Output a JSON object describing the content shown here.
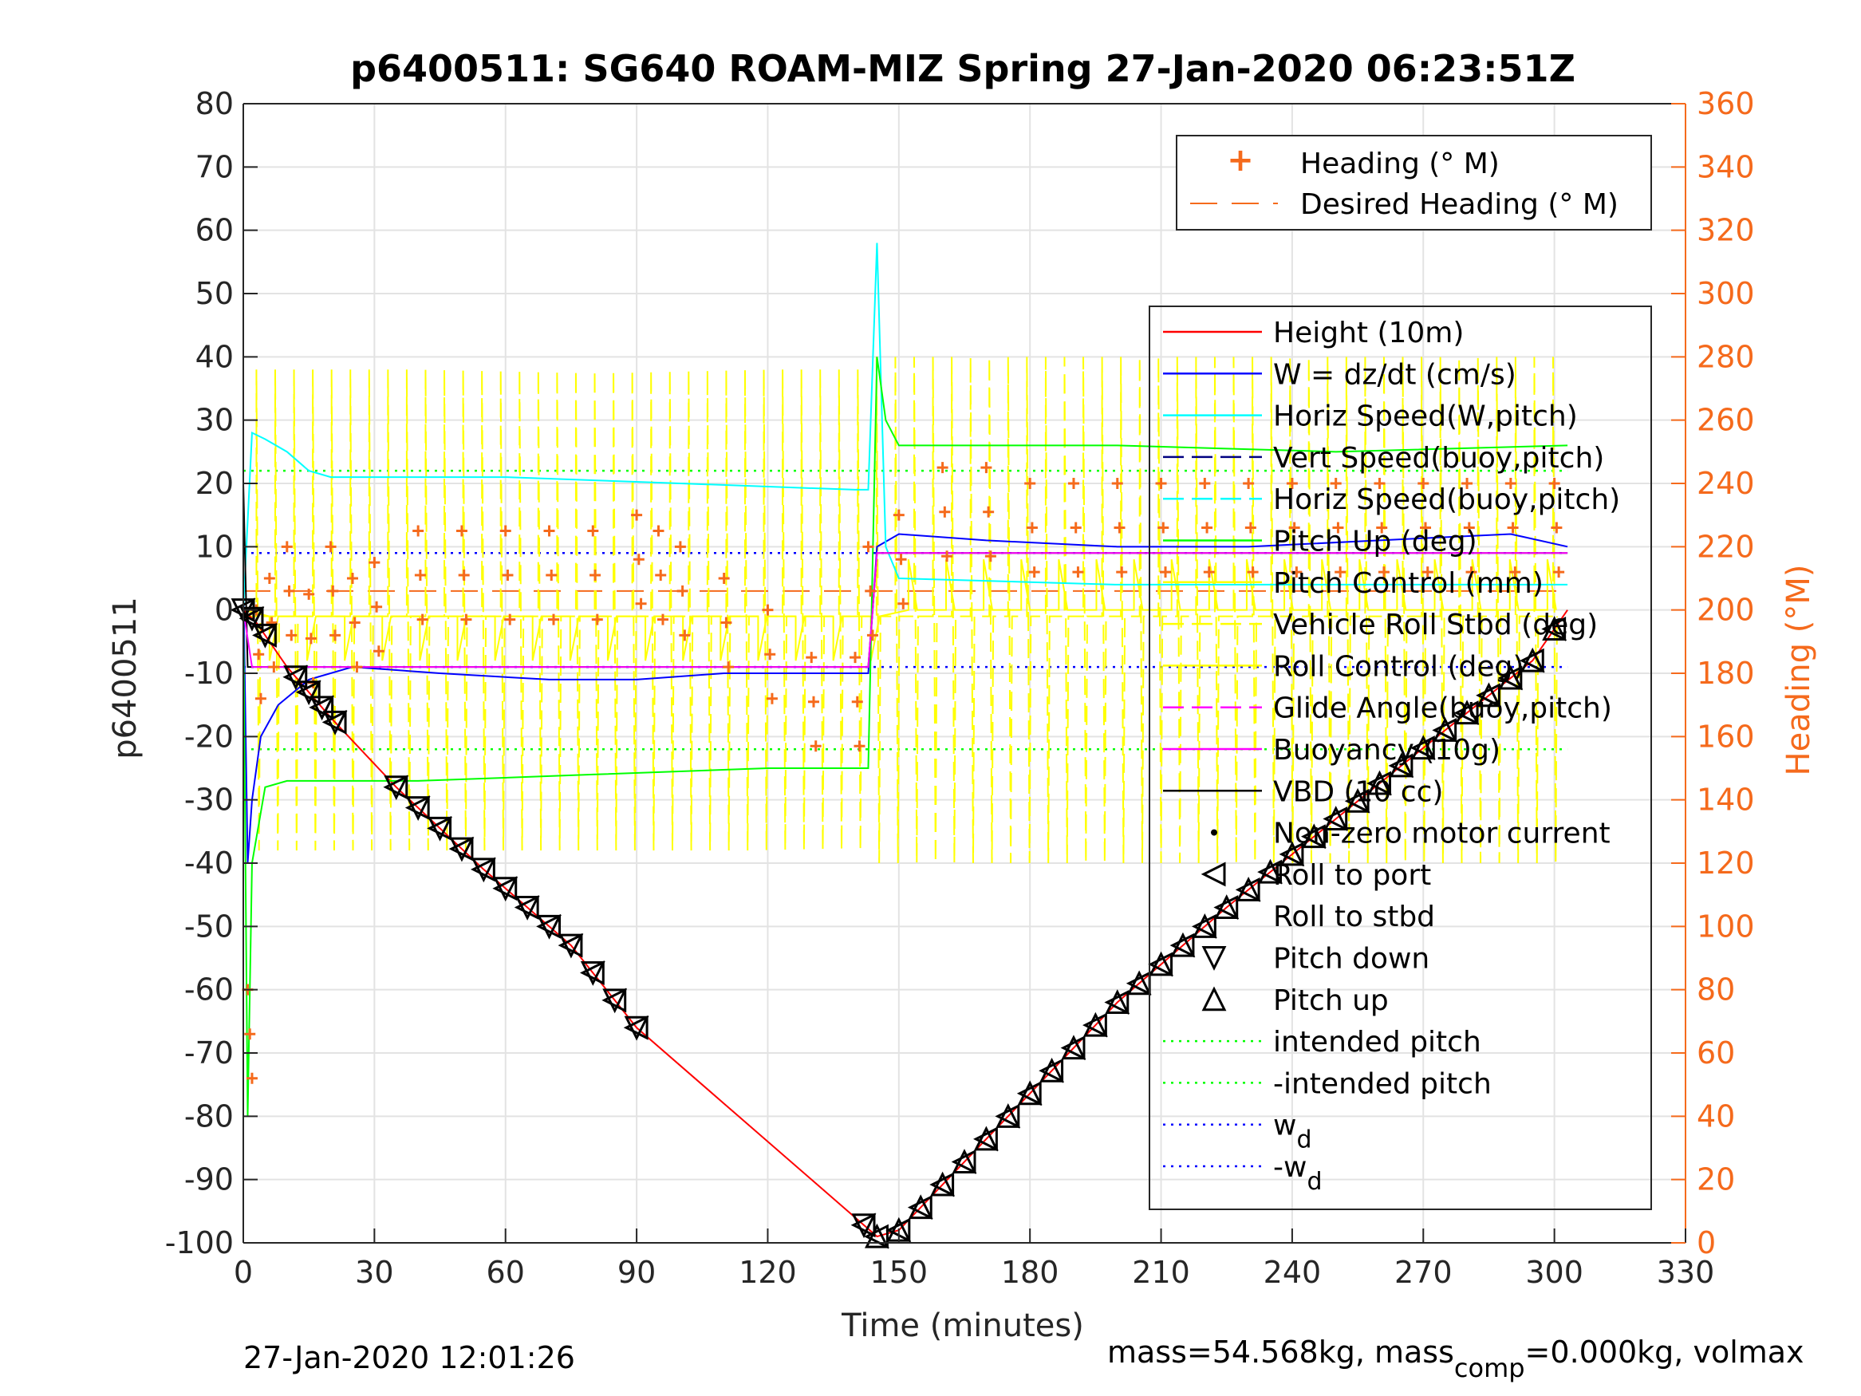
{
  "chart_data": {
    "type": "line",
    "title": "p6400511: SG640 ROAM-MIZ Spring 27-Jan-2020 06:23:51Z",
    "xlabel": "Time (minutes)",
    "ylabel": "p6400511",
    "ylabel_right": "Heading (°M)",
    "xlim": [
      0,
      330
    ],
    "ylim": [
      -100,
      80
    ],
    "ylim_right": [
      0,
      360
    ],
    "xticks": [
      0,
      30,
      60,
      90,
      120,
      150,
      180,
      210,
      240,
      270,
      300,
      330
    ],
    "yticks": [
      -100,
      -90,
      -80,
      -70,
      -60,
      -50,
      -40,
      -30,
      -20,
      -10,
      0,
      10,
      20,
      30,
      40,
      50,
      60,
      70,
      80
    ],
    "yticks_right": [
      0,
      20,
      40,
      60,
      80,
      100,
      120,
      140,
      160,
      180,
      200,
      220,
      240,
      260,
      280,
      300,
      320,
      340,
      360
    ],
    "xtick_labels": [
      "0",
      "30",
      "60",
      "90",
      "120",
      "150",
      "180",
      "210",
      "240",
      "270",
      "300",
      "330"
    ],
    "ytick_labels": [
      "-100",
      "-90",
      "-80",
      "-70",
      "-60",
      "-50",
      "-40",
      "-30",
      "-20",
      "-10",
      "0",
      "10",
      "20",
      "30",
      "40",
      "50",
      "60",
      "70",
      "80"
    ],
    "ytick_labels_right": [
      "0",
      "20",
      "40",
      "60",
      "80",
      "100",
      "120",
      "140",
      "160",
      "180",
      "200",
      "220",
      "240",
      "260",
      "280",
      "300",
      "320",
      "340",
      "360"
    ],
    "grid": true,
    "legend_heading": {
      "placement": "top-right",
      "entries": [
        "Heading (° M)",
        "Desired Heading (° M)"
      ]
    },
    "legend_main": {
      "placement": "right",
      "entries": [
        "Height (10m)",
        "W = dz/dt (cm/s)",
        "Horiz Speed(W,pitch)",
        "Vert Speed(buoy,pitch)",
        "Horiz Speed(buoy,pitch)",
        "Pitch Up (deg)",
        "Pitch Control (mm)",
        "Vehicle Roll Stbd (deg)",
        "Roll Control (deg)",
        "Glide Angle(buoy,pitch)",
        "Buoyancy (10g)",
        "VBD (10 cc)",
        "Non-zero motor current",
        "Roll to port",
        "Roll to stbd",
        "Pitch down",
        "Pitch up",
        "intended pitch",
        "-intended pitch",
        "w",
        "-w"
      ],
      "subscript": "d"
    },
    "colors": {
      "height": "#ff0000",
      "w": "#0000ff",
      "horiz_speed": "#00ffff",
      "pitch": "#00ff00",
      "pitch_control": "#ffff00",
      "roll": "#ffff00",
      "heading": "#f56a1c",
      "buoyancy": "#ff00ff",
      "vbd": "#000000",
      "intended_pitch": "#00ff00",
      "wd": "#0000ff",
      "axis_right": "#f56a1c"
    },
    "series": [
      {
        "name": "Height (10m)",
        "x": [
          0,
          3,
          10,
          20,
          35,
          55,
          75,
          90,
          110,
          130,
          145,
          150,
          175,
          200,
          225,
          250,
          275,
          295,
          303
        ],
        "values": [
          0,
          -2,
          -9,
          -17,
          -28,
          -41,
          -53,
          -66,
          -78,
          -90,
          -99,
          -98,
          -80,
          -62,
          -47,
          -33,
          -19,
          -8,
          0
        ]
      },
      {
        "name": "W = dz/dt (cm/s)",
        "x": [
          0,
          1,
          2,
          4,
          8,
          15,
          25,
          45,
          70,
          90,
          110,
          130,
          143,
          145,
          150,
          170,
          200,
          230,
          260,
          290,
          303
        ],
        "values": [
          5,
          -40,
          -30,
          -20,
          -15,
          -11,
          -9,
          -10,
          -11,
          -11,
          -10,
          -10,
          -10,
          10,
          12,
          11,
          10,
          10,
          11,
          12,
          10
        ]
      },
      {
        "name": "Horiz Speed(W,pitch)",
        "x": [
          0,
          2,
          5,
          10,
          15,
          20,
          30,
          60,
          100,
          140,
          143,
          145,
          147,
          150,
          200,
          250,
          303
        ],
        "values": [
          0,
          28,
          27,
          25,
          22,
          21,
          21,
          21,
          20,
          19,
          19,
          58,
          10,
          5,
          4,
          4,
          4
        ]
      },
      {
        "name": "Pitch Up (deg)",
        "x": [
          0,
          1,
          2,
          5,
          10,
          20,
          40,
          80,
          120,
          143,
          145,
          147,
          150,
          200,
          250,
          303
        ],
        "values": [
          0,
          -80,
          -40,
          -28,
          -27,
          -27,
          -27,
          -26,
          -25,
          -25,
          40,
          30,
          26,
          26,
          25,
          26
        ]
      },
      {
        "name": "VBD (10 cc)",
        "x": [
          0,
          1,
          2,
          143,
          145,
          150,
          303
        ],
        "values": [
          20,
          -9,
          -9,
          -9,
          9,
          9,
          9
        ]
      },
      {
        "name": "Buoyancy (10g)",
        "x": [
          0,
          2,
          143,
          145,
          303
        ],
        "values": [
          0,
          -9,
          -9,
          9,
          9
        ]
      },
      {
        "name": "Heading (° M)",
        "axis": "right",
        "x": [
          1,
          3,
          6,
          10,
          15,
          20,
          25,
          30,
          40,
          50,
          60,
          70,
          80,
          90,
          95,
          100,
          110,
          120,
          130,
          140,
          143,
          150,
          160,
          170,
          180,
          190,
          200,
          210,
          220,
          230,
          240,
          250,
          260,
          270,
          280,
          290,
          300
        ],
        "values": [
          80,
          200,
          210,
          220,
          205,
          220,
          210,
          215,
          225,
          225,
          225,
          225,
          225,
          230,
          225,
          220,
          210,
          200,
          185,
          185,
          220,
          230,
          245,
          245,
          240,
          240,
          240,
          240,
          240,
          240,
          240,
          240,
          240,
          240,
          240,
          240,
          240
        ]
      },
      {
        "name": "Desired Heading (° M)",
        "axis": "right",
        "x": [
          0,
          303
        ],
        "values": [
          206,
          206
        ]
      }
    ],
    "reference_lines": {
      "intended_pitch": 22,
      "minus_intended_pitch": -22,
      "w_d": 9,
      "minus_w_d": -9
    },
    "pitch_markers": {
      "pitch_down_times": [
        0,
        2,
        5,
        12,
        15,
        18,
        21,
        35,
        40,
        45,
        50,
        55,
        60,
        65,
        70,
        75,
        80,
        85,
        90,
        142
      ],
      "pitch_up_times": [
        145,
        150,
        155,
        160,
        165,
        170,
        175,
        180,
        185,
        190,
        195,
        200,
        205,
        210,
        215,
        220,
        225,
        230,
        235,
        240,
        245,
        250,
        255,
        260,
        265,
        270,
        275,
        280,
        285,
        290,
        295,
        300
      ]
    }
  },
  "footer": {
    "timestamp": "27-Jan-2020 12:01:26",
    "mass_text_1": "mass=54.568kg, mass",
    "mass_sub": "comp",
    "mass_text_2": "=0.000kg, volmax"
  }
}
